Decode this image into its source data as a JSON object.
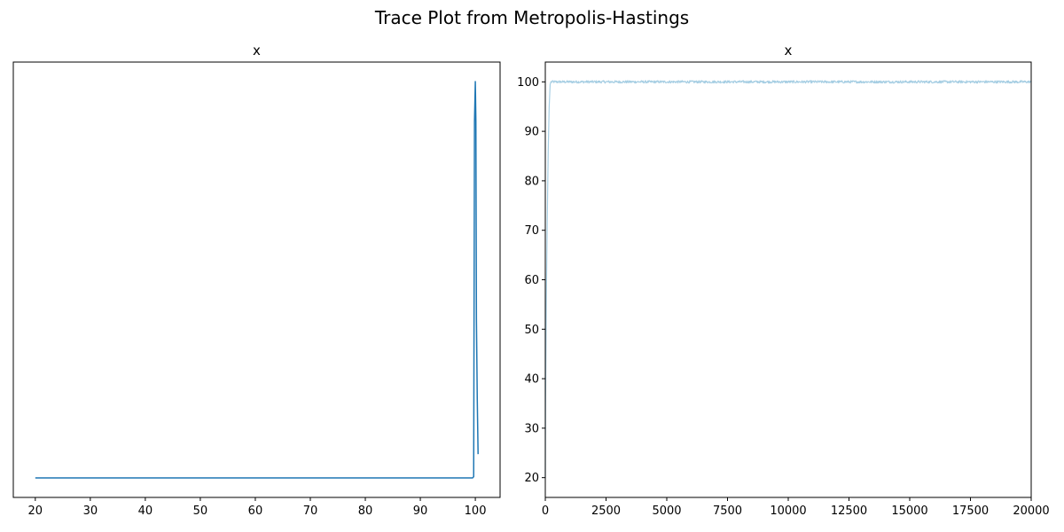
{
  "chart_data": [
    {
      "type": "line",
      "suptitle": "Trace Plot from Metropolis-Hastings",
      "title": "x",
      "kind": "density",
      "xlabel": "",
      "ylabel": "",
      "xlim": [
        16.0,
        104.5
      ],
      "x_ticks": [
        20,
        30,
        40,
        50,
        60,
        70,
        80,
        90,
        100
      ],
      "y_ticks": [],
      "series": [
        {
          "name": "x",
          "color": "#1f77b4",
          "x": [
            20,
            99.5,
            99.7,
            99.85,
            100.0,
            100.1,
            100.2,
            100.35,
            100.5
          ],
          "y": [
            0.0,
            0.0,
            0.003,
            0.9,
            1.0,
            0.9,
            0.4,
            0.2,
            0.06
          ]
        }
      ]
    },
    {
      "type": "line",
      "title": "x",
      "kind": "trace",
      "xlabel": "",
      "ylabel": "",
      "xlim": [
        0,
        20000
      ],
      "ylim": [
        16,
        104
      ],
      "x_ticks": [
        "0",
        "2500",
        "5000",
        "7500",
        "10000",
        "12500",
        "15000",
        "17500",
        "20000"
      ],
      "y_ticks": [
        "20",
        "30",
        "40",
        "50",
        "60",
        "70",
        "80",
        "90",
        "100"
      ],
      "series": [
        {
          "name": "x",
          "color": "#a6cee3",
          "burn_in": {
            "x": [
              0,
              10,
              40,
              80,
              120,
              160,
              200,
              230
            ],
            "y": [
              20,
              35,
              55,
              72,
              86,
              95,
              99.5,
              100
            ]
          },
          "stationary": {
            "x_start": 230,
            "x_end": 20000,
            "mean": 100,
            "spread": 0.25
          }
        }
      ]
    }
  ]
}
